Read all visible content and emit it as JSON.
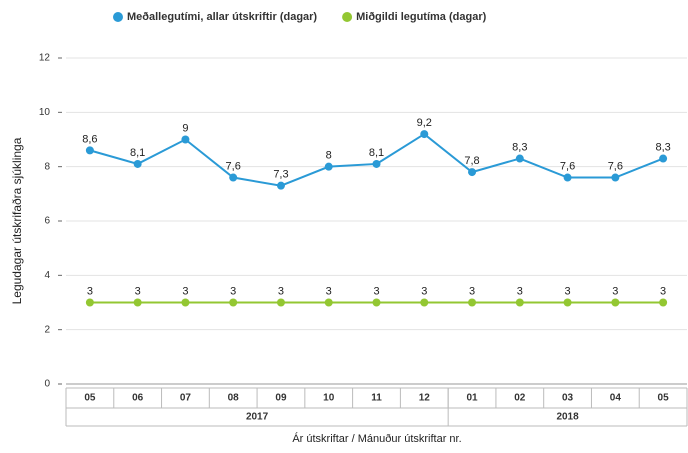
{
  "chart_data": {
    "type": "line",
    "y_label": "Legudagar útskrifaðra sjúklinga",
    "x_label": "Ár útskriftar / Mánuður útskriftar nr.",
    "groups": [
      {
        "name": "2017",
        "categories": [
          "05",
          "06",
          "07",
          "08",
          "09",
          "10",
          "11",
          "12"
        ]
      },
      {
        "name": "2018",
        "categories": [
          "01",
          "02",
          "03",
          "04",
          "05"
        ]
      }
    ],
    "series": [
      {
        "name": "Meðallegutími, allar útskriftir (dagar)",
        "color": "#2a9ad6",
        "values": [
          8.6,
          8.1,
          9,
          7.6,
          7.3,
          8,
          8.1,
          9.2,
          7.8,
          8.3,
          7.6,
          7.6,
          8.3
        ],
        "value_labels": [
          "8,6",
          "8,1",
          "9",
          "7,6",
          "7,3",
          "8",
          "8,1",
          "9,2",
          "7,8",
          "8,3",
          "7,6",
          "7,6",
          "8,3"
        ]
      },
      {
        "name": "Miðgildi legutíma (dagar)",
        "color": "#93c732",
        "values": [
          3,
          3,
          3,
          3,
          3,
          3,
          3,
          3,
          3,
          3,
          3,
          3,
          3
        ]
      }
    ],
    "ylim": [
      0,
      12
    ],
    "yticks": [
      0,
      2,
      4,
      6,
      8,
      10,
      12
    ],
    "grid": true,
    "legend": "top"
  }
}
